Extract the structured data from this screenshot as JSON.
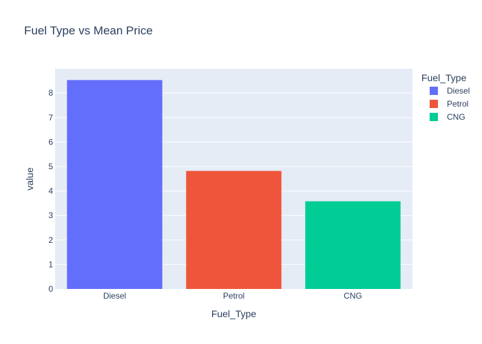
{
  "chart_data": {
    "type": "bar",
    "title": "Fuel Type vs Mean Price",
    "xlabel": "Fuel_Type",
    "ylabel": "value",
    "categories": [
      "Diesel",
      "Petrol",
      "CNG"
    ],
    "series": [
      {
        "name": "Diesel",
        "category": "Diesel",
        "value": 8.53,
        "color": "#636efa"
      },
      {
        "name": "Petrol",
        "category": "Petrol",
        "value": 4.82,
        "color": "#ef553b"
      },
      {
        "name": "CNG",
        "category": "CNG",
        "value": 3.58,
        "color": "#00cc96"
      }
    ],
    "ylim": [
      0,
      8.99
    ],
    "yticks": [
      0,
      1,
      2,
      3,
      4,
      5,
      6,
      7,
      8
    ],
    "grid": true,
    "legend": {
      "title": "Fuel_Type",
      "placement": "right"
    },
    "colors": {
      "plot_background": "#e5ecf6",
      "gridline": "#ffffff",
      "text": "#2a3f5f"
    }
  }
}
